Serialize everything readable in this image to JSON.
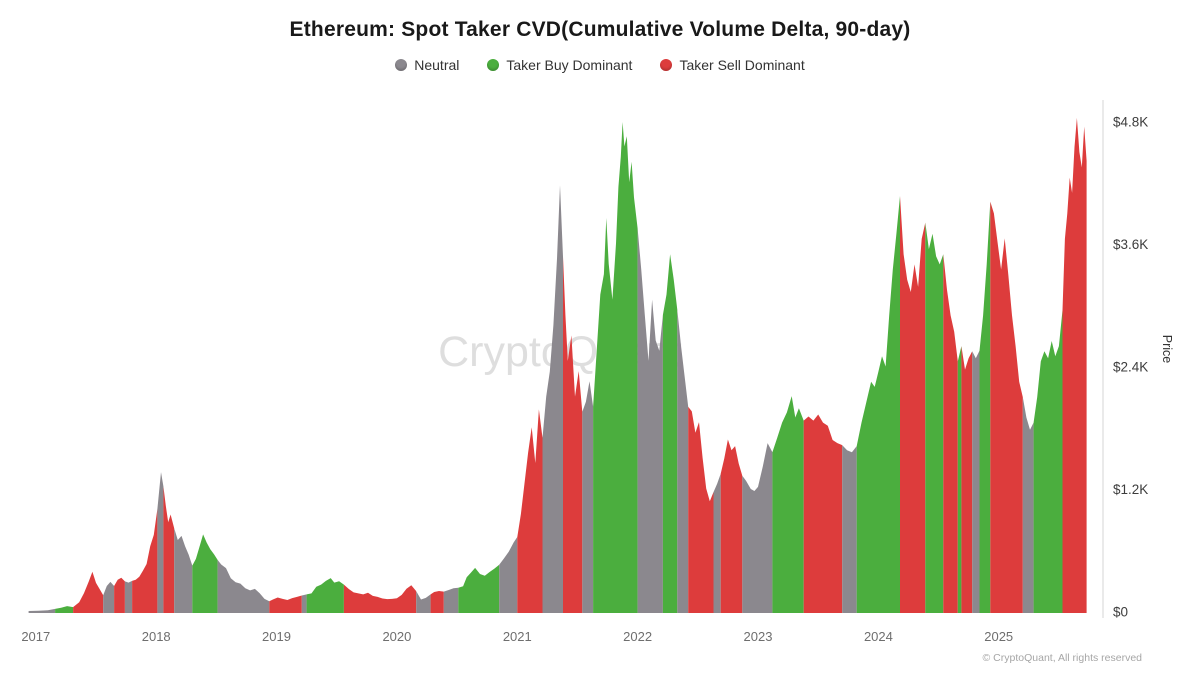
{
  "title": "Ethereum: Spot Taker CVD(Cumulative Volume Delta, 90-day)",
  "watermark": "CryptoQuant",
  "footer": "© CryptoQuant, All rights reserved",
  "chart_data": {
    "type": "area",
    "title": "Ethereum: Spot Taker CVD(Cumulative Volume Delta, 90-day)",
    "x_label": "",
    "y_label": "Price",
    "x_unit": "decimal_year",
    "xlim": [
      2016.935,
      2025.8
    ],
    "ylim": [
      0,
      4800
    ],
    "grid": false,
    "legend_position": "top-center",
    "y_ticks": [
      {
        "value": 0,
        "label": "$0"
      },
      {
        "value": 1200,
        "label": "$1.2K"
      },
      {
        "value": 2400,
        "label": "$2.4K"
      },
      {
        "value": 3600,
        "label": "$3.6K"
      },
      {
        "value": 4800,
        "label": "$4.8K"
      }
    ],
    "x_ticks": [
      {
        "value": 2017,
        "label": "2017"
      },
      {
        "value": 2018,
        "label": "2018"
      },
      {
        "value": 2019,
        "label": "2019"
      },
      {
        "value": 2020,
        "label": "2020"
      },
      {
        "value": 2021,
        "label": "2021"
      },
      {
        "value": 2022,
        "label": "2022"
      },
      {
        "value": 2023,
        "label": "2023"
      },
      {
        "value": 2024,
        "label": "2024"
      },
      {
        "value": 2025,
        "label": "2025"
      }
    ],
    "classes": [
      {
        "id": 0,
        "name": "Neutral",
        "color": "#8b888e"
      },
      {
        "id": 1,
        "name": "Taker Buy Dominant",
        "color": "#4bae3e"
      },
      {
        "id": 2,
        "name": "Taker Sell Dominant",
        "color": "#dd3c3c"
      }
    ],
    "points": [
      [
        2016.94,
        10,
        0
      ],
      [
        2017.02,
        13,
        0
      ],
      [
        2017.1,
        18,
        0
      ],
      [
        2017.16,
        30,
        0
      ],
      [
        2017.21,
        42,
        1
      ],
      [
        2017.26,
        58,
        1
      ],
      [
        2017.31,
        48,
        1
      ],
      [
        2017.36,
        95,
        2
      ],
      [
        2017.4,
        185,
        2
      ],
      [
        2017.44,
        300,
        2
      ],
      [
        2017.47,
        395,
        2
      ],
      [
        2017.5,
        285,
        2
      ],
      [
        2017.53,
        225,
        2
      ],
      [
        2017.56,
        165,
        2
      ],
      [
        2017.59,
        255,
        0
      ],
      [
        2017.62,
        295,
        0
      ],
      [
        2017.65,
        255,
        0
      ],
      [
        2017.68,
        315,
        2
      ],
      [
        2017.71,
        335,
        2
      ],
      [
        2017.74,
        300,
        2
      ],
      [
        2017.77,
        288,
        0
      ],
      [
        2017.8,
        305,
        0
      ],
      [
        2017.83,
        315,
        2
      ],
      [
        2017.86,
        345,
        2
      ],
      [
        2017.89,
        405,
        2
      ],
      [
        2017.92,
        470,
        2
      ],
      [
        2017.95,
        645,
        2
      ],
      [
        2017.98,
        755,
        2
      ],
      [
        2018.01,
        1010,
        2
      ],
      [
        2018.04,
        1370,
        0
      ],
      [
        2018.06,
        1230,
        0
      ],
      [
        2018.08,
        1040,
        2
      ],
      [
        2018.1,
        880,
        2
      ],
      [
        2018.12,
        955,
        2
      ],
      [
        2018.15,
        820,
        2
      ],
      [
        2018.18,
        705,
        0
      ],
      [
        2018.21,
        745,
        0
      ],
      [
        2018.24,
        645,
        0
      ],
      [
        2018.27,
        560,
        0
      ],
      [
        2018.3,
        455,
        0
      ],
      [
        2018.33,
        520,
        1
      ],
      [
        2018.36,
        640,
        1
      ],
      [
        2018.39,
        760,
        1
      ],
      [
        2018.42,
        680,
        1
      ],
      [
        2018.45,
        615,
        1
      ],
      [
        2018.48,
        565,
        1
      ],
      [
        2018.51,
        510,
        1
      ],
      [
        2018.54,
        465,
        0
      ],
      [
        2018.58,
        430,
        0
      ],
      [
        2018.62,
        330,
        0
      ],
      [
        2018.66,
        292,
        0
      ],
      [
        2018.7,
        278,
        0
      ],
      [
        2018.74,
        232,
        0
      ],
      [
        2018.78,
        212,
        0
      ],
      [
        2018.82,
        226,
        0
      ],
      [
        2018.86,
        184,
        0
      ],
      [
        2018.9,
        128,
        0
      ],
      [
        2018.94,
        106,
        0
      ],
      [
        2018.97,
        122,
        2
      ],
      [
        2019.01,
        142,
        2
      ],
      [
        2019.05,
        128,
        2
      ],
      [
        2019.09,
        118,
        2
      ],
      [
        2019.13,
        136,
        2
      ],
      [
        2019.17,
        148,
        2
      ],
      [
        2019.21,
        162,
        2
      ],
      [
        2019.25,
        172,
        0
      ],
      [
        2019.29,
        182,
        1
      ],
      [
        2019.33,
        248,
        1
      ],
      [
        2019.37,
        268,
        1
      ],
      [
        2019.41,
        305,
        1
      ],
      [
        2019.45,
        332,
        1
      ],
      [
        2019.48,
        288,
        1
      ],
      [
        2019.52,
        302,
        1
      ],
      [
        2019.56,
        268,
        1
      ],
      [
        2019.6,
        225,
        2
      ],
      [
        2019.64,
        192,
        2
      ],
      [
        2019.68,
        182,
        2
      ],
      [
        2019.72,
        172,
        2
      ],
      [
        2019.76,
        188,
        2
      ],
      [
        2019.8,
        158,
        2
      ],
      [
        2019.84,
        148,
        2
      ],
      [
        2019.88,
        132,
        2
      ],
      [
        2019.92,
        126,
        2
      ],
      [
        2019.96,
        128,
        2
      ],
      [
        2020.0,
        134,
        2
      ],
      [
        2020.04,
        168,
        2
      ],
      [
        2020.08,
        228,
        2
      ],
      [
        2020.12,
        262,
        2
      ],
      [
        2020.16,
        205,
        2
      ],
      [
        2020.2,
        122,
        0
      ],
      [
        2020.24,
        138,
        0
      ],
      [
        2020.28,
        172,
        0
      ],
      [
        2020.31,
        196,
        2
      ],
      [
        2020.35,
        206,
        2
      ],
      [
        2020.39,
        200,
        2
      ],
      [
        2020.43,
        216,
        0
      ],
      [
        2020.47,
        232,
        0
      ],
      [
        2020.51,
        238,
        0
      ],
      [
        2020.55,
        252,
        1
      ],
      [
        2020.58,
        340,
        1
      ],
      [
        2020.62,
        392,
        1
      ],
      [
        2020.65,
        432,
        1
      ],
      [
        2020.69,
        372,
        1
      ],
      [
        2020.73,
        356,
        1
      ],
      [
        2020.77,
        392,
        1
      ],
      [
        2020.81,
        425,
        1
      ],
      [
        2020.85,
        462,
        1
      ],
      [
        2020.89,
        525,
        0
      ],
      [
        2020.93,
        592,
        0
      ],
      [
        2020.97,
        682,
        0
      ],
      [
        2021.0,
        735,
        0
      ],
      [
        2021.03,
        960,
        2
      ],
      [
        2021.06,
        1260,
        2
      ],
      [
        2021.09,
        1560,
        2
      ],
      [
        2021.12,
        1810,
        2
      ],
      [
        2021.15,
        1460,
        2
      ],
      [
        2021.18,
        1985,
        2
      ],
      [
        2021.21,
        1705,
        2
      ],
      [
        2021.24,
        2110,
        0
      ],
      [
        2021.27,
        2355,
        0
      ],
      [
        2021.3,
        2810,
        0
      ],
      [
        2021.33,
        3460,
        0
      ],
      [
        2021.355,
        4180,
        0
      ],
      [
        2021.38,
        3480,
        0
      ],
      [
        2021.4,
        2910,
        2
      ],
      [
        2021.42,
        2460,
        2
      ],
      [
        2021.45,
        2710,
        2
      ],
      [
        2021.48,
        2110,
        2
      ],
      [
        2021.51,
        2360,
        2
      ],
      [
        2021.54,
        1960,
        2
      ],
      [
        2021.57,
        2060,
        0
      ],
      [
        2021.6,
        2260,
        0
      ],
      [
        2021.63,
        2010,
        0
      ],
      [
        2021.66,
        2560,
        1
      ],
      [
        2021.69,
        3110,
        1
      ],
      [
        2021.72,
        3310,
        1
      ],
      [
        2021.74,
        3860,
        1
      ],
      [
        2021.76,
        3410,
        1
      ],
      [
        2021.79,
        3060,
        1
      ],
      [
        2021.82,
        3610,
        1
      ],
      [
        2021.84,
        4160,
        1
      ],
      [
        2021.86,
        4460,
        1
      ],
      [
        2021.875,
        4800,
        1
      ],
      [
        2021.89,
        4560,
        1
      ],
      [
        2021.91,
        4660,
        1
      ],
      [
        2021.93,
        4210,
        1
      ],
      [
        2021.95,
        4410,
        1
      ],
      [
        2021.97,
        4060,
        1
      ],
      [
        2022.0,
        3760,
        1
      ],
      [
        2022.03,
        3360,
        0
      ],
      [
        2022.06,
        2910,
        0
      ],
      [
        2022.09,
        2460,
        0
      ],
      [
        2022.12,
        3060,
        0
      ],
      [
        2022.15,
        2660,
        0
      ],
      [
        2022.18,
        2560,
        0
      ],
      [
        2022.21,
        2910,
        0
      ],
      [
        2022.24,
        3110,
        1
      ],
      [
        2022.27,
        3505,
        1
      ],
      [
        2022.3,
        3260,
        1
      ],
      [
        2022.33,
        2960,
        1
      ],
      [
        2022.36,
        2610,
        0
      ],
      [
        2022.39,
        2310,
        0
      ],
      [
        2022.42,
        2010,
        0
      ],
      [
        2022.45,
        1965,
        2
      ],
      [
        2022.48,
        1755,
        2
      ],
      [
        2022.51,
        1860,
        2
      ],
      [
        2022.54,
        1510,
        2
      ],
      [
        2022.57,
        1210,
        2
      ],
      [
        2022.6,
        1085,
        2
      ],
      [
        2022.63,
        1175,
        2
      ],
      [
        2022.66,
        1255,
        0
      ],
      [
        2022.69,
        1355,
        0
      ],
      [
        2022.72,
        1505,
        2
      ],
      [
        2022.75,
        1690,
        2
      ],
      [
        2022.78,
        1585,
        2
      ],
      [
        2022.81,
        1625,
        2
      ],
      [
        2022.84,
        1455,
        2
      ],
      [
        2022.87,
        1335,
        2
      ],
      [
        2022.9,
        1285,
        0
      ],
      [
        2022.94,
        1205,
        0
      ],
      [
        2022.97,
        1185,
        0
      ],
      [
        2023.0,
        1225,
        0
      ],
      [
        2023.04,
        1425,
        0
      ],
      [
        2023.08,
        1655,
        0
      ],
      [
        2023.12,
        1565,
        0
      ],
      [
        2023.16,
        1705,
        1
      ],
      [
        2023.2,
        1855,
        1
      ],
      [
        2023.24,
        1955,
        1
      ],
      [
        2023.28,
        2115,
        1
      ],
      [
        2023.31,
        1905,
        1
      ],
      [
        2023.34,
        1995,
        1
      ],
      [
        2023.38,
        1875,
        1
      ],
      [
        2023.42,
        1915,
        2
      ],
      [
        2023.46,
        1875,
        2
      ],
      [
        2023.5,
        1935,
        2
      ],
      [
        2023.54,
        1855,
        2
      ],
      [
        2023.58,
        1825,
        2
      ],
      [
        2023.62,
        1685,
        2
      ],
      [
        2023.66,
        1655,
        2
      ],
      [
        2023.7,
        1635,
        2
      ],
      [
        2023.74,
        1585,
        0
      ],
      [
        2023.78,
        1565,
        0
      ],
      [
        2023.82,
        1625,
        0
      ],
      [
        2023.86,
        1855,
        1
      ],
      [
        2023.9,
        2055,
        1
      ],
      [
        2023.94,
        2255,
        1
      ],
      [
        2023.97,
        2205,
        1
      ],
      [
        2024.0,
        2355,
        1
      ],
      [
        2024.03,
        2505,
        1
      ],
      [
        2024.06,
        2405,
        1
      ],
      [
        2024.09,
        2905,
        1
      ],
      [
        2024.12,
        3355,
        1
      ],
      [
        2024.15,
        3705,
        1
      ],
      [
        2024.18,
        4075,
        1
      ],
      [
        2024.21,
        3505,
        2
      ],
      [
        2024.24,
        3255,
        2
      ],
      [
        2024.27,
        3135,
        2
      ],
      [
        2024.3,
        3405,
        2
      ],
      [
        2024.33,
        3185,
        2
      ],
      [
        2024.36,
        3655,
        2
      ],
      [
        2024.39,
        3815,
        2
      ],
      [
        2024.42,
        3555,
        1
      ],
      [
        2024.45,
        3705,
        1
      ],
      [
        2024.48,
        3485,
        1
      ],
      [
        2024.51,
        3405,
        1
      ],
      [
        2024.54,
        3505,
        1
      ],
      [
        2024.57,
        3155,
        2
      ],
      [
        2024.6,
        2905,
        2
      ],
      [
        2024.63,
        2745,
        2
      ],
      [
        2024.66,
        2455,
        2
      ],
      [
        2024.69,
        2605,
        1
      ],
      [
        2024.72,
        2375,
        2
      ],
      [
        2024.75,
        2485,
        2
      ],
      [
        2024.78,
        2555,
        2
      ],
      [
        2024.81,
        2485,
        0
      ],
      [
        2024.84,
        2560,
        0
      ],
      [
        2024.87,
        2905,
        1
      ],
      [
        2024.9,
        3405,
        1
      ],
      [
        2024.93,
        4020,
        1
      ],
      [
        2024.96,
        3905,
        2
      ],
      [
        2024.99,
        3625,
        2
      ],
      [
        2025.02,
        3355,
        2
      ],
      [
        2025.05,
        3660,
        2
      ],
      [
        2025.08,
        3305,
        2
      ],
      [
        2025.11,
        2905,
        2
      ],
      [
        2025.14,
        2605,
        2
      ],
      [
        2025.17,
        2255,
        2
      ],
      [
        2025.2,
        2105,
        2
      ],
      [
        2025.23,
        1905,
        0
      ],
      [
        2025.26,
        1785,
        0
      ],
      [
        2025.29,
        1855,
        0
      ],
      [
        2025.32,
        2105,
        1
      ],
      [
        2025.35,
        2455,
        1
      ],
      [
        2025.38,
        2555,
        1
      ],
      [
        2025.41,
        2485,
        1
      ],
      [
        2025.44,
        2655,
        1
      ],
      [
        2025.47,
        2505,
        1
      ],
      [
        2025.5,
        2605,
        1
      ],
      [
        2025.53,
        2955,
        1
      ],
      [
        2025.55,
        3655,
        2
      ],
      [
        2025.57,
        3905,
        2
      ],
      [
        2025.59,
        4255,
        2
      ],
      [
        2025.61,
        4105,
        2
      ],
      [
        2025.63,
        4555,
        2
      ],
      [
        2025.65,
        4840,
        2
      ],
      [
        2025.67,
        4505,
        2
      ],
      [
        2025.69,
        4355,
        2
      ],
      [
        2025.71,
        4755,
        2
      ],
      [
        2025.73,
        4420,
        2
      ]
    ]
  }
}
